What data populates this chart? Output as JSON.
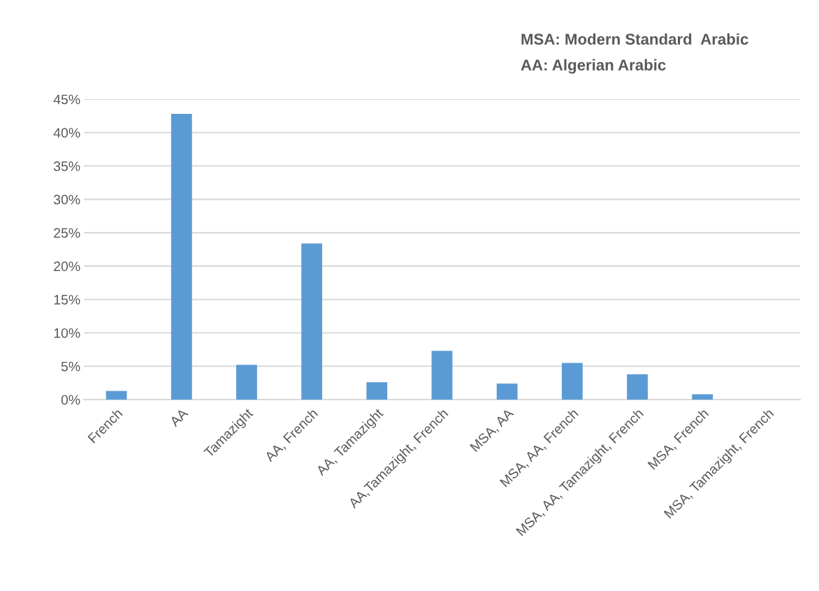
{
  "chart_data": {
    "type": "bar",
    "categories": [
      "French",
      "AA",
      "Tamazight",
      "AA, French",
      "AA, Tamazight",
      "AA,Tamazight, French",
      "MSA, AA",
      "MSA, AA, French",
      "MSA, AA, Tamazight, French",
      "MSA, French",
      "MSA, Tamazight, French"
    ],
    "values": [
      1.3,
      42.8,
      5.2,
      23.4,
      2.6,
      7.3,
      2.4,
      5.5,
      3.8,
      0.8,
      0
    ],
    "color": "#5b9bd5",
    "ylim": [
      0,
      45
    ],
    "yticks": [
      {
        "value": 0,
        "label": "0%"
      },
      {
        "value": 5,
        "label": "5%"
      },
      {
        "value": 10,
        "label": "10%"
      },
      {
        "value": 15,
        "label": "15%"
      },
      {
        "value": 20,
        "label": "20%"
      },
      {
        "value": 25,
        "label": "25%"
      },
      {
        "value": 30,
        "label": "30%"
      },
      {
        "value": 35,
        "label": "35%"
      },
      {
        "value": 40,
        "label": "40%"
      },
      {
        "value": 45,
        "label": "45%"
      }
    ],
    "grid": "y",
    "annotations": [
      "MSA: Modern Standard  Arabic",
      "AA: Algerian Arabic"
    ]
  }
}
